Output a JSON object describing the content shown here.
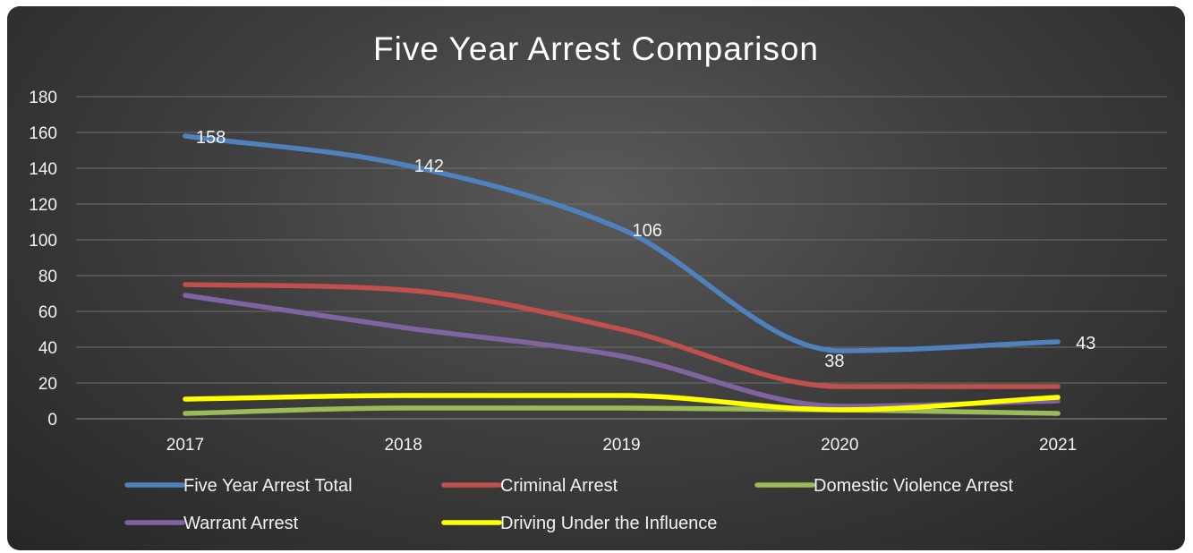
{
  "chart_data": {
    "type": "line",
    "title": "Five Year Arrest Comparison",
    "xlabel": "",
    "ylabel": "",
    "categories": [
      "2017",
      "2018",
      "2019",
      "2020",
      "2021"
    ],
    "ylim": [
      0,
      180
    ],
    "yticks": [
      0,
      20,
      40,
      60,
      80,
      100,
      120,
      140,
      160,
      180
    ],
    "grid": true,
    "legend_position": "bottom",
    "smooth": true,
    "series": [
      {
        "name": "Five Year Arrest Total",
        "color": "#4f81bd",
        "values": [
          158,
          142,
          106,
          38,
          43
        ],
        "data_labels": [
          "158",
          "142",
          "106",
          "38",
          "43"
        ]
      },
      {
        "name": "Criminal Arrest",
        "color": "#c0504d",
        "values": [
          75,
          72,
          50,
          18,
          18
        ]
      },
      {
        "name": "Domestic Violence Arrest",
        "color": "#9bbb59",
        "values": [
          3,
          6,
          6,
          5,
          3
        ]
      },
      {
        "name": "Warrant Arrest",
        "color": "#8064a2",
        "values": [
          69,
          51,
          35,
          7,
          10
        ]
      },
      {
        "name": "Driving Under the Influence",
        "color": "#ffff00",
        "values": [
          11,
          13,
          13,
          5,
          12
        ]
      }
    ]
  }
}
